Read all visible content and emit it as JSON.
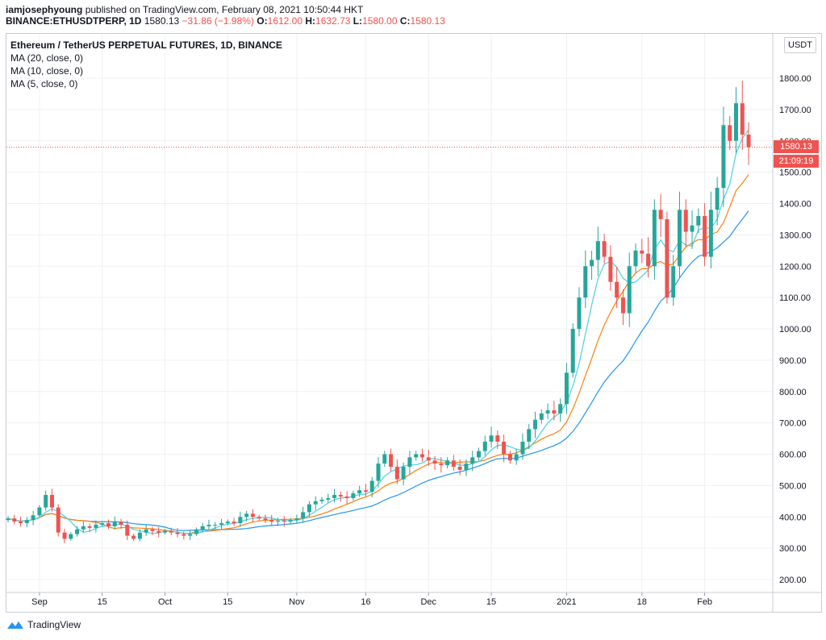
{
  "header": {
    "author": "iamjosephyoung",
    "published_text": "published on TradingView.com, February 08, 2021 10:50:44 HKT",
    "symbol": "BINANCE:ETHUSDTPERP, 1D",
    "last": "1580.13",
    "change": "−31.86 (−1.98%)",
    "o_label": "O:",
    "o": "1612.00",
    "h_label": "H:",
    "h": "1632.73",
    "l_label": "L:",
    "l": "1580.00",
    "c_label": "C:",
    "c": "1580.13"
  },
  "legend": {
    "title": "Ethereum / TetherUS PERPETUAL FUTURES, 1D, BINANCE",
    "ma20": "MA (20, close, 0)",
    "ma10": "MA (10, close, 0)",
    "ma5": "MA (5, close, 0)"
  },
  "axis": {
    "currency_button": "USDT",
    "price_tag": "1580.13",
    "countdown_tag": "21:09:19"
  },
  "footer": {
    "brand": "TradingView"
  },
  "colors": {
    "up": "#26a69a",
    "down": "#ef5350",
    "ma20": "#2196f3",
    "ma10": "#ff7f0e",
    "ma5": "#4dd0e1"
  },
  "chart_data": {
    "type": "candlestick",
    "title": "Ethereum / TetherUS PERPETUAL FUTURES, 1D, BINANCE",
    "y_ticks": [
      200,
      300,
      400,
      500,
      600,
      700,
      800,
      900,
      1000,
      1100,
      1200,
      1300,
      1400,
      1500,
      1600,
      1700,
      1800
    ],
    "y_tick_labels": [
      "200.00",
      "300.00",
      "400.00",
      "500.00",
      "600.00",
      "700.00",
      "800.00",
      "900.00",
      "1000.00",
      "1100.00",
      "1200.00",
      "1300.00",
      "1400.00",
      "1500.00",
      "1600.00",
      "1700.00",
      "1800.00"
    ],
    "ylim": [
      160,
      1870
    ],
    "x_ticks": [
      {
        "label": "Sep",
        "index": 5
      },
      {
        "label": "15",
        "index": 15
      },
      {
        "label": "Oct",
        "index": 25
      },
      {
        "label": "15",
        "index": 35
      },
      {
        "label": "Nov",
        "index": 46
      },
      {
        "label": "16",
        "index": 57
      },
      {
        "label": "Dec",
        "index": 67
      },
      {
        "label": "15",
        "index": 77
      },
      {
        "label": "2021",
        "index": 89
      },
      {
        "label": "18",
        "index": 101
      },
      {
        "label": "Feb",
        "index": 111
      }
    ],
    "closes": [
      395,
      385,
      380,
      390,
      405,
      430,
      470,
      430,
      350,
      330,
      345,
      360,
      370,
      365,
      375,
      380,
      370,
      385,
      375,
      340,
      330,
      350,
      360,
      355,
      350,
      355,
      350,
      345,
      340,
      345,
      360,
      370,
      375,
      375,
      380,
      385,
      380,
      400,
      410,
      400,
      395,
      390,
      385,
      388,
      385,
      390,
      395,
      415,
      440,
      450,
      455,
      460,
      470,
      465,
      460,
      475,
      485,
      480,
      515,
      570,
      600,
      560,
      520,
      560,
      590,
      600,
      590,
      580,
      570,
      565,
      580,
      560,
      550,
      570,
      590,
      610,
      640,
      660,
      640,
      600,
      580,
      600,
      640,
      680,
      710,
      730,
      740,
      730,
      760,
      860,
      1000,
      1100,
      1200,
      1220,
      1280,
      1230,
      1150,
      1100,
      1050,
      1200,
      1250,
      1240,
      1200,
      1380,
      1350,
      1100,
      1200,
      1380,
      1310,
      1330,
      1360,
      1230,
      1380,
      1450,
      1650,
      1600,
      1720,
      1620,
      1580
    ],
    "ma_series": [
      {
        "name": "MA (20, close, 0)",
        "color": "#2196f3"
      },
      {
        "name": "MA (10, close, 0)",
        "color": "#ff7f0e"
      },
      {
        "name": "MA (5, close, 0)",
        "color": "#4dd0e1"
      }
    ]
  }
}
